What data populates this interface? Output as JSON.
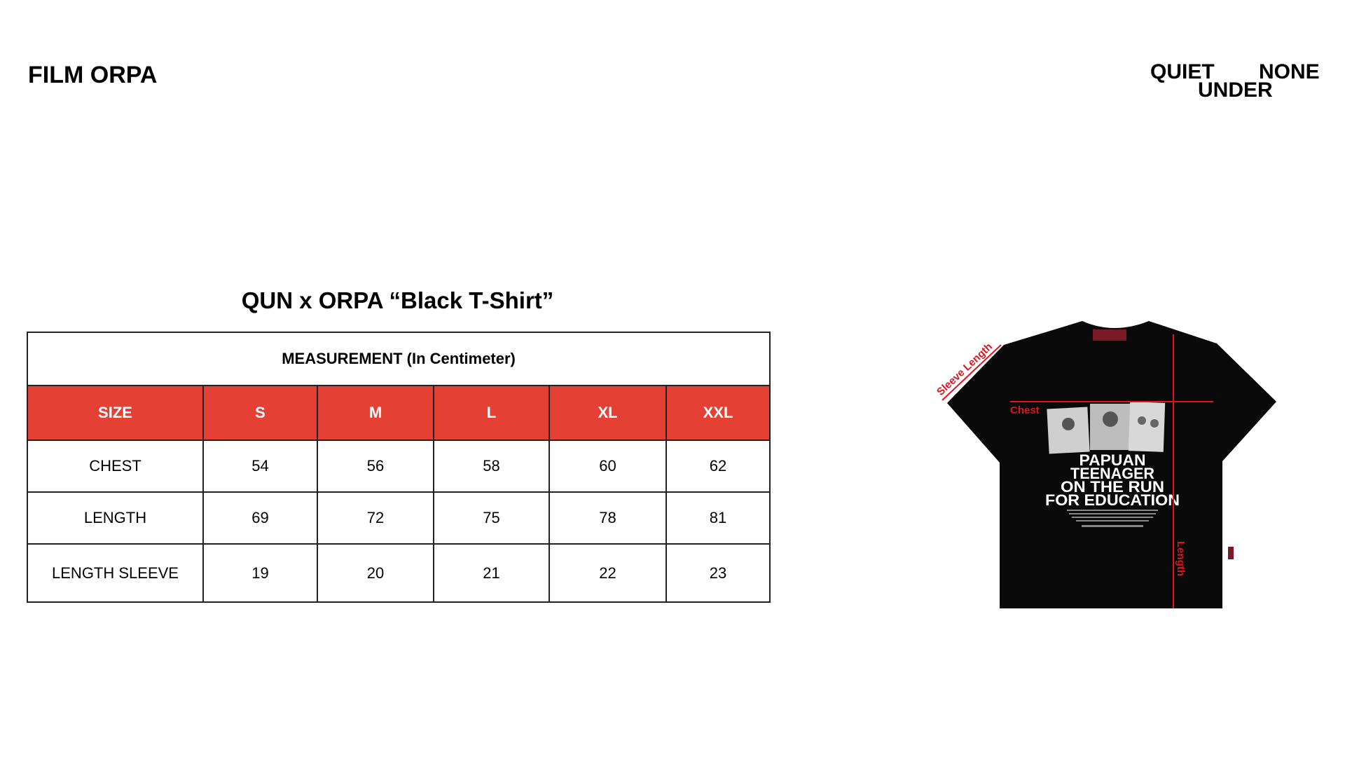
{
  "header": {
    "brand": "FILM ORPA",
    "logo": [
      "QUIET",
      "UNDER",
      "NONE"
    ]
  },
  "title": "QUN x ORPA “Black T-Shirt”",
  "table": {
    "caption": "MEASUREMENT (In Centimeter)",
    "columns": [
      "SIZE",
      "S",
      "M",
      "L",
      "XL",
      "XXL"
    ],
    "rows": [
      [
        "CHEST",
        "54",
        "56",
        "58",
        "60",
        "62"
      ],
      [
        "LENGTH",
        "69",
        "72",
        "75",
        "78",
        "81"
      ],
      [
        "LENGTH SLEEVE",
        "19",
        "20",
        "21",
        "22",
        "23"
      ]
    ]
  },
  "shirt": {
    "labels": {
      "sleeve": "Sleeve Length",
      "chest": "Chest",
      "length": "Length"
    },
    "print_lines": [
      "PAPUAN",
      "TEENAGER",
      "ON THE RUN",
      "FOR EDUCATION"
    ],
    "color": "#0a0a0a",
    "annotation_color": "#e0141b"
  },
  "colors": {
    "header_red": "#e44134"
  }
}
